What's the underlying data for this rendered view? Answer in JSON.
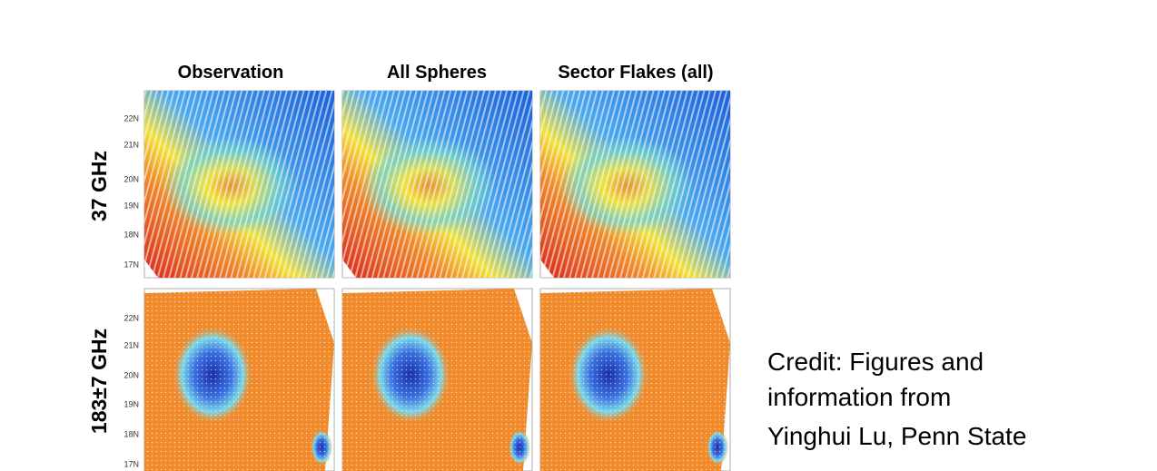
{
  "columns": [
    "Observation",
    "All Spheres",
    "Sector Flakes (all)"
  ],
  "rows": [
    "37 GHz",
    "183±7 GHz"
  ],
  "lat_ticks": [
    "22N",
    "21N",
    "20N",
    "19N",
    "18N",
    "17N"
  ],
  "credit": [
    "Credit: Figures and",
    "information  from",
    "Yinghui Lu, Penn State"
  ]
}
